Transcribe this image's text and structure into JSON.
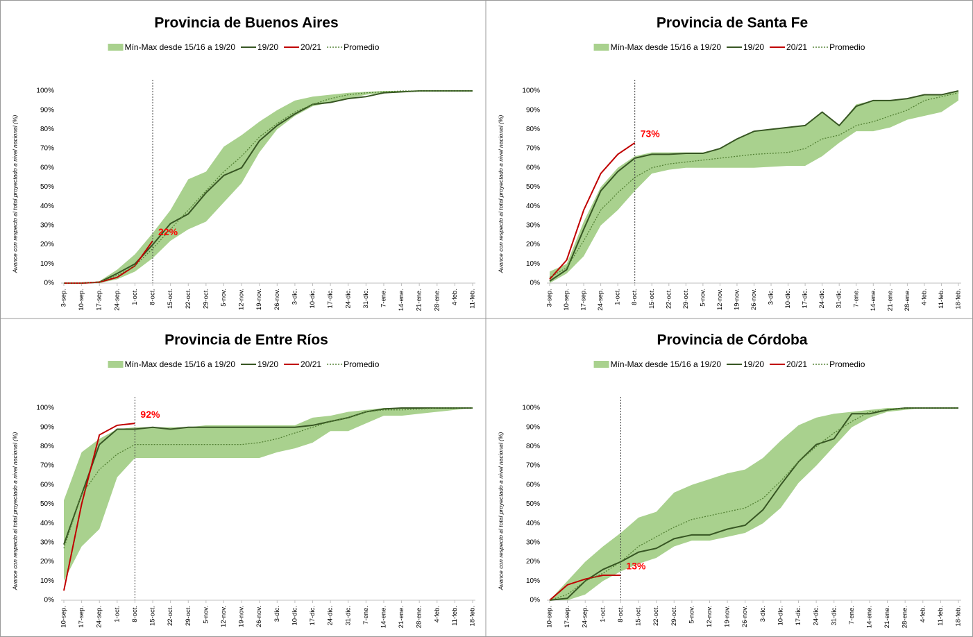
{
  "chart_data": [
    {
      "type": "line",
      "title": "Provincia de Buenos Aires",
      "y_label": "Avance con respecto al total proyectado a nivel nacional (%)",
      "categories": [
        "3-sep.",
        "10-sep.",
        "17-sep.",
        "24-sep.",
        "1-oct.",
        "8-oct.",
        "15-oct.",
        "22-oct.",
        "29-oct.",
        "5-nov.",
        "12-nov.",
        "19-nov.",
        "26-nov.",
        "3-dic.",
        "10-dic.",
        "17-dic.",
        "24-dic.",
        "31-dic.",
        "7-ene.",
        "14-ene.",
        "21-ene.",
        "28-ene.",
        "4-feb.",
        "11-feb."
      ],
      "ylim": [
        0,
        100
      ],
      "yticks": [
        {
          "value": 0,
          "label": "0%"
        },
        {
          "value": 10,
          "label": "10%"
        },
        {
          "value": 20,
          "label": "20%"
        },
        {
          "value": 30,
          "label": "30%"
        },
        {
          "value": 40,
          "label": "40%"
        },
        {
          "value": 50,
          "label": "50%"
        },
        {
          "value": 60,
          "label": "60%"
        },
        {
          "value": 70,
          "label": "70%"
        },
        {
          "value": 80,
          "label": "80%"
        },
        {
          "value": 90,
          "label": "90%"
        },
        {
          "value": 100,
          "label": "100%"
        }
      ],
      "series": [
        {
          "name": "Mín-Max desde 15/16 a 19/20",
          "color": "#a9d18e",
          "lower": [
            0,
            0,
            0,
            2,
            6,
            13,
            22,
            28,
            32,
            42,
            52,
            68,
            80,
            87,
            92,
            94,
            96,
            98,
            99,
            99.5,
            100,
            100,
            100,
            100
          ],
          "upper": [
            0,
            0,
            1,
            7,
            15,
            26,
            38,
            54,
            58,
            71,
            77,
            84,
            90,
            95,
            97,
            98,
            99,
            99.5,
            100,
            100,
            100,
            100,
            100,
            100
          ]
        },
        {
          "name": "19/20",
          "color": "#375623",
          "values": [
            0,
            0,
            0.5,
            5,
            10,
            20,
            31,
            36,
            47,
            56,
            60,
            74,
            82,
            88,
            93,
            94,
            96,
            97,
            99,
            99.5,
            100,
            100,
            100,
            100
          ]
        },
        {
          "name": "20/21",
          "color": "#c00000",
          "values": [
            0,
            0,
            0.5,
            3,
            9,
            22,
            null,
            null,
            null,
            null,
            null,
            null,
            null,
            null,
            null,
            null,
            null,
            null,
            null,
            null,
            null,
            null,
            null,
            null
          ],
          "value_labels": [
            null,
            null,
            null,
            null,
            null,
            "22%",
            null,
            null,
            null,
            null,
            null,
            null,
            null,
            null,
            null,
            null,
            null,
            null,
            null,
            null,
            null,
            null,
            null,
            null
          ]
        },
        {
          "name": "Promedio",
          "color": "#548235",
          "style": "dotted",
          "values": [
            0,
            0,
            0.5,
            4,
            9,
            18,
            28,
            38,
            48,
            58,
            66,
            76,
            83,
            89,
            93,
            96,
            98,
            99,
            99.5,
            100,
            100,
            100,
            100,
            100
          ]
        }
      ]
    },
    {
      "type": "line",
      "title": "Provincia de Santa Fe",
      "y_label": "Avance con respecto al total proyectado a nivel nacional (%)",
      "categories": [
        "3-sep.",
        "10-sep.",
        "17-sep.",
        "24-sep.",
        "1-oct.",
        "8-oct.",
        "15-oct.",
        "22-oct.",
        "29-oct.",
        "5-nov.",
        "12-nov.",
        "19-nov.",
        "26-nov.",
        "3-dic.",
        "10-dic.",
        "17-dic.",
        "24-dic.",
        "31-dic.",
        "7-ene.",
        "14-ene.",
        "21-ene.",
        "28-ene.",
        "4-feb.",
        "11-feb.",
        "18-feb."
      ],
      "ylim": [
        0,
        100
      ],
      "yticks": [
        {
          "value": 0,
          "label": "0%"
        },
        {
          "value": 10,
          "label": "10%"
        },
        {
          "value": 20,
          "label": "20%"
        },
        {
          "value": 30,
          "label": "30%"
        },
        {
          "value": 40,
          "label": "40%"
        },
        {
          "value": 50,
          "label": "50%"
        },
        {
          "value": 60,
          "label": "60%"
        },
        {
          "value": 70,
          "label": "70%"
        },
        {
          "value": 80,
          "label": "80%"
        },
        {
          "value": 90,
          "label": "90%"
        },
        {
          "value": 100,
          "label": "100%"
        }
      ],
      "series": [
        {
          "name": "Mín-Max desde 15/16 a 19/20",
          "color": "#a9d18e",
          "lower": [
            0,
            5,
            14,
            30,
            38,
            48,
            57,
            59,
            60,
            60,
            60,
            60,
            60,
            60.5,
            61,
            61,
            66,
            73,
            79,
            79,
            81,
            85,
            87,
            89,
            95
          ],
          "upper": [
            6,
            10,
            32,
            50,
            60,
            66,
            68,
            68,
            68,
            68,
            70,
            75,
            79,
            80,
            81,
            82,
            89,
            82,
            93,
            95,
            95,
            96,
            98,
            98,
            100
          ]
        },
        {
          "name": "19/20",
          "color": "#375623",
          "values": [
            1,
            7,
            28,
            48,
            58,
            65,
            67,
            67,
            67.5,
            67.5,
            70,
            75,
            79,
            80,
            81,
            82,
            89,
            82,
            92,
            95,
            95,
            96,
            98,
            98,
            100
          ]
        },
        {
          "name": "20/21",
          "color": "#c00000",
          "values": [
            2,
            12,
            38,
            57,
            67,
            73,
            null,
            null,
            null,
            null,
            null,
            null,
            null,
            null,
            null,
            null,
            null,
            null,
            null,
            null,
            null,
            null,
            null,
            null,
            null
          ],
          "value_labels": [
            null,
            null,
            null,
            null,
            null,
            "73%",
            null,
            null,
            null,
            null,
            null,
            null,
            null,
            null,
            null,
            null,
            null,
            null,
            null,
            null,
            null,
            null,
            null,
            null,
            null
          ]
        },
        {
          "name": "Promedio",
          "color": "#548235",
          "style": "dotted",
          "values": [
            3,
            8,
            22,
            38,
            47,
            55,
            60,
            62,
            63,
            64,
            65,
            66,
            67,
            67.5,
            68,
            70,
            75,
            77,
            82,
            84,
            87,
            90,
            95,
            97,
            99
          ]
        }
      ]
    },
    {
      "type": "line",
      "title": "Provincia de Entre Ríos",
      "y_label": "Avance con respecto al total proyectado a nivel nacional (%)",
      "categories": [
        "10-sep.",
        "17-sep.",
        "24-sep.",
        "1-oct.",
        "8-oct.",
        "15-oct.",
        "22-oct.",
        "29-oct.",
        "5-nov.",
        "12-nov.",
        "19-nov.",
        "26-nov.",
        "3-dic.",
        "10-dic.",
        "17-dic.",
        "24-dic.",
        "31-dic.",
        "7-ene.",
        "14-ene.",
        "21-ene.",
        "28-ene.",
        "4-feb.",
        "11-feb.",
        "18-feb."
      ],
      "ylim": [
        0,
        100
      ],
      "yticks": [
        {
          "value": 0,
          "label": "0%"
        },
        {
          "value": 10,
          "label": "10%"
        },
        {
          "value": 20,
          "label": "20%"
        },
        {
          "value": 30,
          "label": "30%"
        },
        {
          "value": 40,
          "label": "40%"
        },
        {
          "value": 50,
          "label": "50%"
        },
        {
          "value": 60,
          "label": "60%"
        },
        {
          "value": 70,
          "label": "70%"
        },
        {
          "value": 80,
          "label": "80%"
        },
        {
          "value": 90,
          "label": "90%"
        },
        {
          "value": 100,
          "label": "100%"
        }
      ],
      "series": [
        {
          "name": "Mín-Max desde 15/16 a 19/20",
          "color": "#a9d18e",
          "lower": [
            10,
            28,
            37,
            64,
            74,
            74,
            74,
            74,
            74,
            74,
            74,
            74,
            77,
            79,
            82,
            88,
            88,
            92,
            96,
            96,
            97,
            98,
            99,
            100
          ],
          "upper": [
            52,
            77,
            84,
            89,
            90,
            90,
            90,
            90,
            91,
            91,
            91,
            91,
            91,
            91,
            95,
            96,
            98,
            99,
            100,
            100,
            100,
            100,
            100,
            100
          ]
        },
        {
          "name": "19/20",
          "color": "#375623",
          "values": [
            29,
            55,
            81,
            89,
            89,
            90,
            89,
            90,
            90,
            90,
            90,
            90,
            90,
            90,
            91,
            93,
            95,
            98,
            99.5,
            100,
            100,
            100,
            100,
            100
          ]
        },
        {
          "name": "20/21",
          "color": "#c00000",
          "values": [
            5,
            50,
            86,
            91,
            92,
            null,
            null,
            null,
            null,
            null,
            null,
            null,
            null,
            null,
            null,
            null,
            null,
            null,
            null,
            null,
            null,
            null,
            null,
            null
          ],
          "value_labels": [
            null,
            null,
            null,
            null,
            "92%",
            null,
            null,
            null,
            null,
            null,
            null,
            null,
            null,
            null,
            null,
            null,
            null,
            null,
            null,
            null,
            null,
            null,
            null,
            null
          ]
        },
        {
          "name": "Promedio",
          "color": "#548235",
          "style": "dotted",
          "values": [
            27,
            55,
            68,
            76,
            81,
            81,
            81,
            81,
            81,
            81,
            81,
            82,
            84,
            87,
            90,
            93,
            95,
            98,
            99,
            99,
            99.5,
            100,
            100,
            100
          ]
        }
      ]
    },
    {
      "type": "line",
      "title": "Provincia de Córdoba",
      "y_label": "Avance con respecto al total proyectado a nivel nacional (%)",
      "categories": [
        "10-sep.",
        "17-sep.",
        "24-sep.",
        "1-oct.",
        "8-oct.",
        "15-oct.",
        "22-oct.",
        "29-oct.",
        "5-nov.",
        "12-nov.",
        "19-nov.",
        "26-nov.",
        "3-dic.",
        "10-dic.",
        "17-dic.",
        "24-dic.",
        "31-dic.",
        "7-ene.",
        "14-ene.",
        "21-ene.",
        "28-ene.",
        "4-feb.",
        "11-feb.",
        "18-feb."
      ],
      "ylim": [
        0,
        100
      ],
      "yticks": [
        {
          "value": 0,
          "label": "0%"
        },
        {
          "value": 10,
          "label": "10%"
        },
        {
          "value": 20,
          "label": "20%"
        },
        {
          "value": 30,
          "label": "30%"
        },
        {
          "value": 40,
          "label": "40%"
        },
        {
          "value": 50,
          "label": "50%"
        },
        {
          "value": 60,
          "label": "60%"
        },
        {
          "value": 70,
          "label": "70%"
        },
        {
          "value": 80,
          "label": "80%"
        },
        {
          "value": 90,
          "label": "90%"
        },
        {
          "value": 100,
          "label": "100%"
        }
      ],
      "series": [
        {
          "name": "Mín-Max desde 15/16 a 19/20",
          "color": "#a9d18e",
          "lower": [
            0,
            0,
            3,
            10,
            15,
            19,
            22,
            28,
            31,
            31,
            33,
            35,
            40,
            48,
            61,
            70,
            80,
            90,
            95,
            98,
            99,
            100,
            100,
            100
          ],
          "upper": [
            0,
            10,
            20,
            28,
            35,
            43,
            46,
            56,
            60,
            63,
            66,
            68,
            74,
            83,
            91,
            95,
            97,
            98,
            99,
            100,
            100,
            100,
            100,
            100
          ]
        },
        {
          "name": "19/20",
          "color": "#375623",
          "values": [
            0,
            1,
            10,
            16,
            20,
            25,
            27,
            32,
            34,
            34,
            37,
            39,
            47,
            60,
            72,
            81,
            84,
            97,
            97,
            99,
            100,
            100,
            100,
            100
          ]
        },
        {
          "name": "20/21",
          "color": "#c00000",
          "values": [
            0,
            8,
            11,
            13,
            13,
            null,
            null,
            null,
            null,
            null,
            null,
            null,
            null,
            null,
            null,
            null,
            null,
            null,
            null,
            null,
            null,
            null,
            null,
            null
          ],
          "value_labels": [
            null,
            null,
            null,
            null,
            "13%",
            null,
            null,
            null,
            null,
            null,
            null,
            null,
            null,
            null,
            null,
            null,
            null,
            null,
            null,
            null,
            null,
            null,
            null,
            null
          ]
        },
        {
          "name": "Promedio",
          "color": "#548235",
          "style": "dotted",
          "values": [
            0,
            3,
            10,
            14,
            20,
            28,
            33,
            38,
            42,
            44,
            46,
            48,
            53,
            62,
            72,
            80,
            87,
            93,
            98,
            99,
            100,
            100,
            100,
            100
          ]
        }
      ]
    }
  ]
}
